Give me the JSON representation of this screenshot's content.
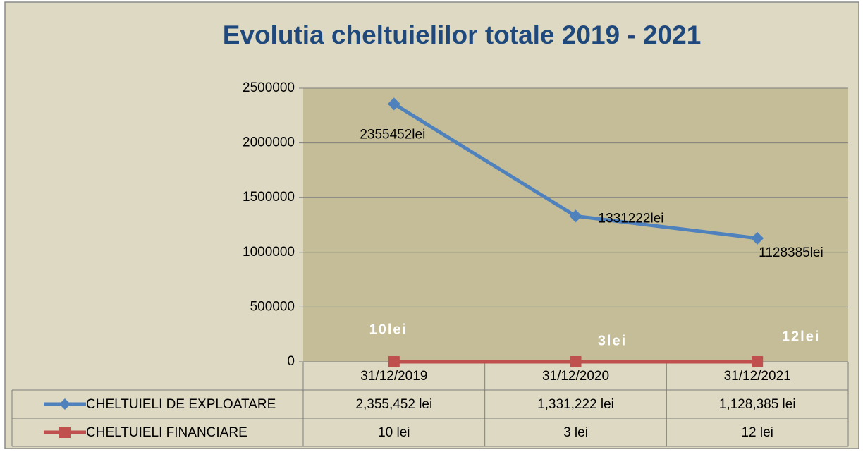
{
  "chart_data": {
    "type": "line",
    "title": "Evolutia cheltuielilor totale 2019 - 2021",
    "categories": [
      "31/12/2019",
      "31/12/2020",
      "31/12/2021"
    ],
    "series": [
      {
        "name": "CHELTUIELI DE EXPLOATARE",
        "color": "#4f81bd",
        "values": [
          2355452,
          1331222,
          1128385
        ],
        "value_labels": [
          "2355452lei",
          "1331222lei",
          "1128385lei"
        ],
        "table_labels": [
          "2,355,452 lei",
          "1,331,222 lei",
          "1,128,385 lei"
        ]
      },
      {
        "name": "CHELTUIELI FINANCIARE",
        "color": "#c0504d",
        "values": [
          10,
          3,
          12
        ],
        "value_labels": [
          "10lei",
          "3lei",
          "12lei"
        ],
        "table_labels": [
          "10 lei",
          "3 lei",
          "12 lei"
        ]
      }
    ],
    "ylim": [
      0,
      2500000
    ],
    "yticks": [
      0,
      500000,
      1000000,
      1500000,
      2000000,
      2500000
    ],
    "grid": true
  }
}
